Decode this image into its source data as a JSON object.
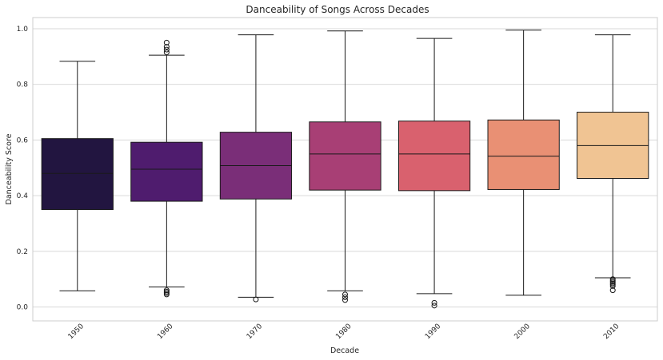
{
  "chart_data": {
    "type": "box",
    "title": "Danceability of Songs Across Decades",
    "xlabel": "Decade",
    "ylabel": "Danceability Score",
    "ylim": [
      -0.05,
      1.04
    ],
    "yticks": [
      "0.0",
      "0.2",
      "0.4",
      "0.6",
      "0.8",
      "1.0"
    ],
    "grid": true,
    "categories": [
      "1950",
      "1960",
      "1970",
      "1980",
      "1990",
      "2000",
      "2010"
    ],
    "colors": [
      "#221540",
      "#4f1c6e",
      "#7a2e78",
      "#a83f75",
      "#d9616e",
      "#e99074",
      "#f0c493"
    ],
    "boxes": [
      {
        "whislo": 0.058,
        "q1": 0.35,
        "med": 0.48,
        "q3": 0.605,
        "whishi": 0.883,
        "fliers": []
      },
      {
        "whislo": 0.072,
        "q1": 0.38,
        "med": 0.495,
        "q3": 0.592,
        "whishi": 0.905,
        "fliers": [
          0.045,
          0.05,
          0.055,
          0.06,
          0.915,
          0.925,
          0.935,
          0.95
        ]
      },
      {
        "whislo": 0.035,
        "q1": 0.388,
        "med": 0.508,
        "q3": 0.628,
        "whishi": 0.978,
        "fliers": [
          0.027
        ]
      },
      {
        "whislo": 0.058,
        "q1": 0.42,
        "med": 0.55,
        "q3": 0.665,
        "whishi": 0.992,
        "fliers": [
          0.025,
          0.035,
          0.045
        ]
      },
      {
        "whislo": 0.048,
        "q1": 0.418,
        "med": 0.55,
        "q3": 0.668,
        "whishi": 0.965,
        "fliers": [
          0.005,
          0.015
        ]
      },
      {
        "whislo": 0.042,
        "q1": 0.422,
        "med": 0.542,
        "q3": 0.672,
        "whishi": 0.995,
        "fliers": []
      },
      {
        "whislo": 0.105,
        "q1": 0.462,
        "med": 0.58,
        "q3": 0.7,
        "whishi": 0.978,
        "fliers": [
          0.06,
          0.075,
          0.08,
          0.085,
          0.09,
          0.095,
          0.1
        ]
      }
    ]
  }
}
